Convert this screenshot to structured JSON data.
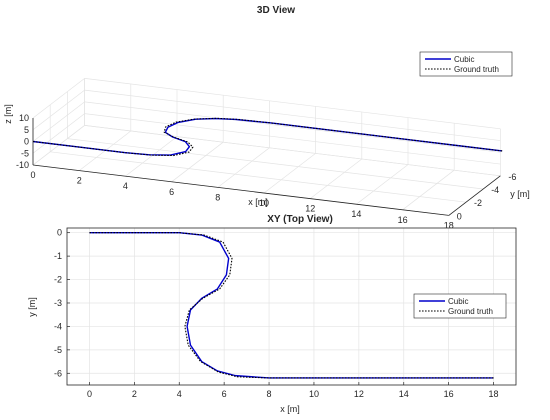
{
  "chart_data": [
    {
      "type": "line",
      "title": "3D View",
      "xlabel": "x [m]",
      "ylabel": "y [m]",
      "zlabel": "z [m]",
      "xlim": [
        0,
        18
      ],
      "ylim": [
        -6,
        0
      ],
      "zlim": [
        -10,
        10
      ],
      "xticks": [
        "0",
        "2",
        "4",
        "6",
        "8",
        "10",
        "12",
        "14",
        "16",
        "18"
      ],
      "yticks": [
        "0",
        "-2",
        "-4",
        "-6"
      ],
      "zticks": [
        "10",
        "5",
        "0",
        "-5",
        "-10"
      ],
      "grid": true,
      "legend_position": "top-right",
      "series": [
        {
          "name": "Cubic",
          "style": "solid",
          "color": "#0000cc",
          "x": [
            0,
            2,
            4,
            5,
            5.8,
            6.2,
            6.1,
            5.7,
            5,
            4.5,
            4.35,
            4.5,
            5,
            5.7,
            6.5,
            8,
            10,
            12,
            14,
            16,
            18
          ],
          "y": [
            0,
            0,
            0,
            -0.1,
            -0.4,
            -1.1,
            -1.8,
            -2.4,
            -2.8,
            -3.3,
            -4.0,
            -4.8,
            -5.5,
            -5.9,
            -6.1,
            -6.2,
            -6.2,
            -6.2,
            -6.2,
            -6.2,
            -6.2
          ],
          "z": [
            0,
            0,
            0,
            0,
            0,
            0,
            0,
            0,
            0,
            0,
            0,
            0,
            0,
            0,
            0,
            0,
            0,
            0,
            0,
            0,
            0
          ]
        },
        {
          "name": "Ground truth",
          "style": "dotted",
          "color": "#000000",
          "x": [
            0,
            2,
            4,
            5.1,
            5.95,
            6.35,
            6.25,
            5.8,
            5.05,
            4.45,
            4.25,
            4.4,
            4.95,
            5.75,
            6.6,
            8,
            10,
            12,
            14,
            16,
            18
          ],
          "y": [
            0,
            0,
            0,
            -0.1,
            -0.4,
            -1.1,
            -1.8,
            -2.4,
            -2.8,
            -3.3,
            -4.0,
            -4.8,
            -5.5,
            -5.95,
            -6.15,
            -6.2,
            -6.2,
            -6.2,
            -6.2,
            -6.2,
            -6.2
          ],
          "z": [
            0,
            0,
            0,
            0,
            0,
            0,
            0,
            0,
            0,
            0,
            0,
            0,
            0,
            0,
            0,
            0,
            0,
            0,
            0,
            0,
            0
          ]
        }
      ]
    },
    {
      "type": "line",
      "title": "XY (Top View)",
      "xlabel": "x [m]",
      "ylabel": "y [m]",
      "xlim": [
        -1,
        19
      ],
      "ylim": [
        -6.5,
        0.2
      ],
      "xticks": [
        "0",
        "2",
        "4",
        "6",
        "8",
        "10",
        "12",
        "14",
        "16",
        "18"
      ],
      "yticks": [
        "0",
        "-1",
        "-2",
        "-3",
        "-4",
        "-5",
        "-6"
      ],
      "grid": true,
      "legend_position": "right",
      "series": [
        {
          "name": "Cubic",
          "style": "solid",
          "color": "#0000cc",
          "x": [
            0,
            2,
            4,
            5,
            5.8,
            6.2,
            6.1,
            5.7,
            5,
            4.5,
            4.35,
            4.5,
            5,
            5.7,
            6.5,
            8,
            10,
            12,
            14,
            16,
            18
          ],
          "y": [
            0,
            0,
            0,
            -0.1,
            -0.4,
            -1.1,
            -1.8,
            -2.4,
            -2.8,
            -3.3,
            -4.0,
            -4.8,
            -5.5,
            -5.9,
            -6.1,
            -6.2,
            -6.2,
            -6.2,
            -6.2,
            -6.2,
            -6.2
          ]
        },
        {
          "name": "Ground truth",
          "style": "dotted",
          "color": "#000000",
          "x": [
            0,
            2,
            4,
            5.1,
            5.95,
            6.35,
            6.25,
            5.8,
            5.05,
            4.45,
            4.25,
            4.4,
            4.95,
            5.75,
            6.6,
            8,
            10,
            12,
            14,
            16,
            18
          ],
          "y": [
            0,
            0,
            0,
            -0.1,
            -0.4,
            -1.1,
            -1.8,
            -2.4,
            -2.8,
            -3.3,
            -4.0,
            -4.8,
            -5.5,
            -5.95,
            -6.15,
            -6.2,
            -6.2,
            -6.2,
            -6.2,
            -6.2,
            -6.2
          ]
        }
      ]
    }
  ]
}
